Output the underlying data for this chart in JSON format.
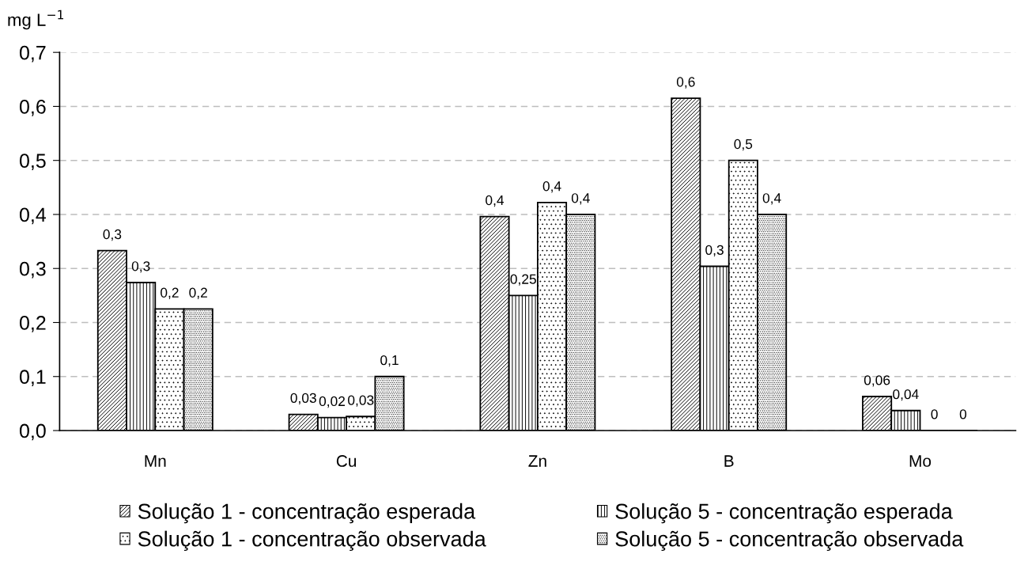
{
  "chart_data": {
    "type": "bar",
    "ylabel": "mg L$^{−1}$",
    "categories": [
      "Mn",
      "Cu",
      "Zn",
      "B",
      "Mo"
    ],
    "series": [
      {
        "name": "Solução 1 - concentração esperada",
        "color": "#000000",
        "values": [
          0.333,
          0.03,
          0.396,
          0.615,
          0.063
        ],
        "value_labels": [
          "0,3",
          "0,03",
          "0,4",
          "0,6",
          "0,06"
        ]
      },
      {
        "name": "Solução 5 - concentração esperada",
        "color": "#000000",
        "values": [
          0.274,
          0.024,
          0.25,
          0.304,
          0.037
        ],
        "value_labels": [
          "0,3",
          "0,02",
          "0,25",
          "0,3",
          "0,04"
        ]
      },
      {
        "name": "Solução 1 - concentração observada",
        "color": "#000000",
        "values": [
          0.225,
          0.026,
          0.422,
          0.5,
          0
        ],
        "value_labels": [
          "0,2",
          "0,03",
          "0,4",
          "0,5",
          "0"
        ]
      },
      {
        "name": "Solução 5 - concentração observada",
        "color": "#000000",
        "values": [
          0.225,
          0.1,
          0.4,
          0.4,
          0
        ],
        "value_labels": [
          "0,2",
          "0,1",
          "0,4",
          "0,4",
          "0"
        ]
      }
    ],
    "ylim": [
      0,
      0.7
    ],
    "yticks": [
      {
        "value": 0,
        "label": "0,0"
      },
      {
        "value": 0.1,
        "label": "0,1"
      },
      {
        "value": 0.2,
        "label": "0,2"
      },
      {
        "value": 0.3,
        "label": "0,3"
      },
      {
        "value": 0.4,
        "label": "0,4"
      },
      {
        "value": 0.5,
        "label": "0,5"
      },
      {
        "value": 0.6,
        "label": "0,6"
      },
      {
        "value": 0.7,
        "label": "0,7"
      }
    ],
    "grid": "y",
    "legend": "bottom"
  }
}
